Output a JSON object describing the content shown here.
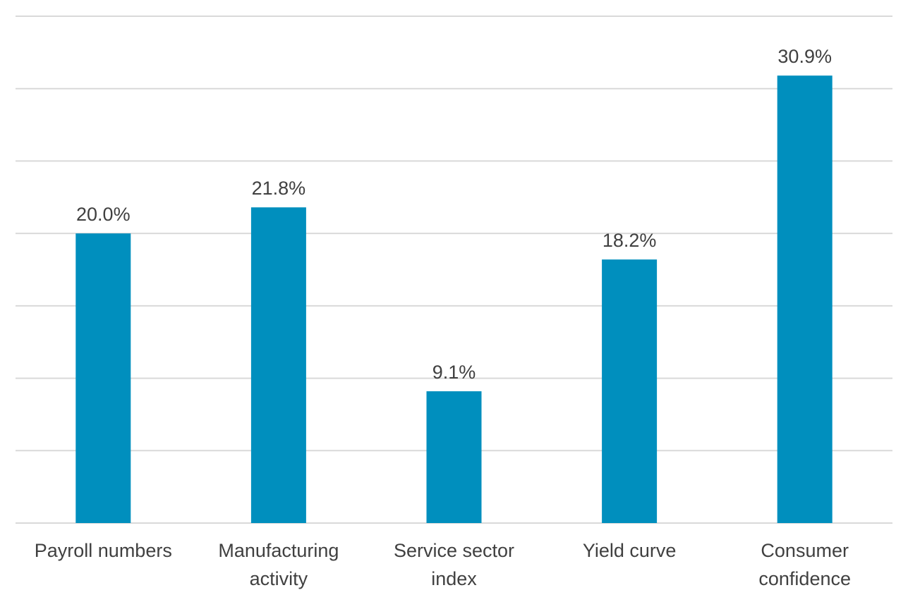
{
  "chart_data": {
    "type": "bar",
    "title": "",
    "xlabel": "",
    "ylabel": "",
    "categories": [
      [
        "Payroll numbers"
      ],
      [
        "Manufacturing",
        "activity"
      ],
      [
        "Service sector",
        "index"
      ],
      [
        "Yield curve"
      ],
      [
        "Consumer",
        "confidence"
      ]
    ],
    "values": [
      20.0,
      21.8,
      9.1,
      18.2,
      30.9
    ],
    "value_labels": [
      "20.0%",
      "21.8%",
      "9.1%",
      "18.2%",
      "30.9%"
    ],
    "ylim": [
      0,
      35
    ],
    "gridline_step": 5,
    "grid": true,
    "legend": "none",
    "bar_color": "#008fbe",
    "label_color": "#404040",
    "grid_color": "#d9d9d9"
  }
}
